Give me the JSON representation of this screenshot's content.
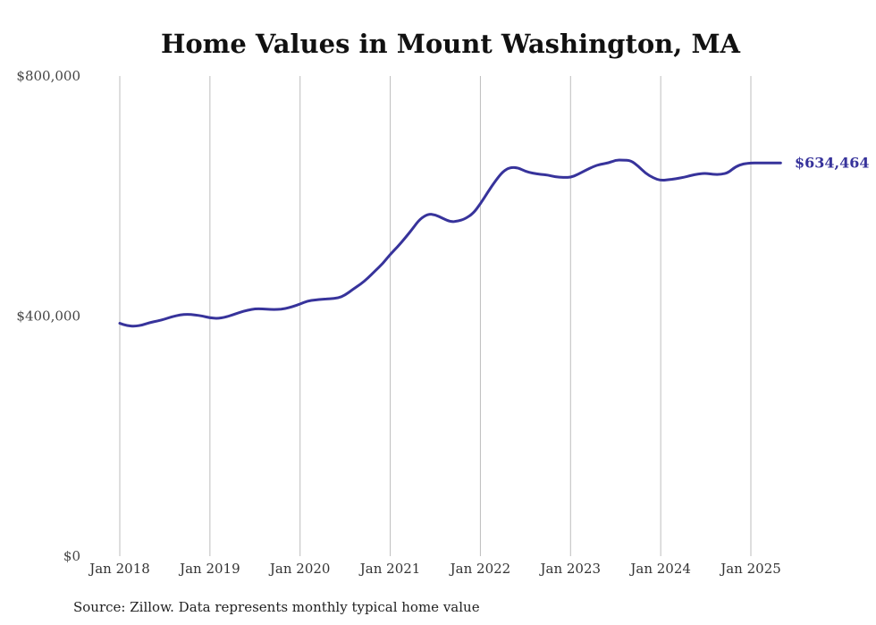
{
  "chart_data": {
    "type": "line",
    "title": "Home Values in Mount Washington, MA",
    "source": "Source: Zillow. Data represents monthly typical home value",
    "end_label": "$634,464",
    "ylim": [
      0,
      800000
    ],
    "yticks": [
      {
        "value": 0,
        "label": "$0"
      },
      {
        "value": 400000,
        "label": "$400,000"
      },
      {
        "value": 800000,
        "label": "$800,000"
      }
    ],
    "xlim": [
      2018.0,
      2025.33
    ],
    "xticks": [
      {
        "value": 2018,
        "label": "Jan 2018"
      },
      {
        "value": 2019,
        "label": "Jan 2019"
      },
      {
        "value": 2020,
        "label": "Jan 2020"
      },
      {
        "value": 2021,
        "label": "Jan 2021"
      },
      {
        "value": 2022,
        "label": "Jan 2022"
      },
      {
        "value": 2023,
        "label": "Jan 2023"
      },
      {
        "value": 2024,
        "label": "Jan 2024"
      },
      {
        "value": 2025,
        "label": "Jan 2025"
      }
    ],
    "grid": "vertical",
    "line_color": "#37339b",
    "series": [
      {
        "x": [
          2018.0,
          2018.08,
          2018.17,
          2018.25,
          2018.33,
          2018.42,
          2018.5,
          2018.58,
          2018.67,
          2018.75,
          2018.83,
          2018.92,
          2019.0,
          2019.08,
          2019.17,
          2019.25,
          2019.33,
          2019.42,
          2019.5,
          2019.58,
          2019.67,
          2019.75,
          2019.83,
          2019.92,
          2020.0,
          2020.08,
          2020.17,
          2020.25,
          2020.33,
          2020.42,
          2020.5,
          2020.58,
          2020.67,
          2020.75,
          2020.83,
          2020.92,
          2021.0,
          2021.08,
          2021.17,
          2021.25,
          2021.33,
          2021.42,
          2021.5,
          2021.58,
          2021.67,
          2021.75,
          2021.83,
          2021.92,
          2022.0,
          2022.08,
          2022.17,
          2022.25,
          2022.33,
          2022.42,
          2022.5,
          2022.58,
          2022.67,
          2022.75,
          2022.83,
          2022.92,
          2023.0,
          2023.08,
          2023.17,
          2023.25,
          2023.33,
          2023.42,
          2023.5,
          2023.58,
          2023.67,
          2023.75,
          2023.83,
          2023.92,
          2024.0,
          2024.08,
          2024.17,
          2024.25,
          2024.33,
          2024.42,
          2024.5,
          2024.58,
          2024.67,
          2024.75,
          2024.83,
          2024.92,
          2025.0,
          2025.08,
          2025.17,
          2025.25,
          2025.33
        ],
        "y": [
          388000,
          384000,
          383000,
          385000,
          389000,
          392000,
          395000,
          399000,
          402000,
          403000,
          402000,
          400000,
          397000,
          396000,
          398000,
          402000,
          406000,
          410000,
          412000,
          412000,
          411000,
          411000,
          412000,
          416000,
          420000,
          425000,
          427000,
          428000,
          429000,
          430000,
          435000,
          444000,
          453000,
          463000,
          475000,
          488000,
          503000,
          515000,
          531000,
          546000,
          562000,
          570000,
          569000,
          563000,
          557000,
          558000,
          562000,
          571000,
          587000,
          606000,
          626000,
          641000,
          648000,
          647000,
          641000,
          638000,
          636000,
          635000,
          632000,
          631000,
          631000,
          636000,
          643000,
          649000,
          653000,
          655000,
          660000,
          660000,
          659000,
          650000,
          638000,
          630000,
          626000,
          627000,
          629000,
          631000,
          634000,
          637000,
          638000,
          636000,
          636000,
          639000,
          649000,
          654000,
          655000,
          655000,
          655000,
          655000,
          634464
        ]
      }
    ]
  }
}
